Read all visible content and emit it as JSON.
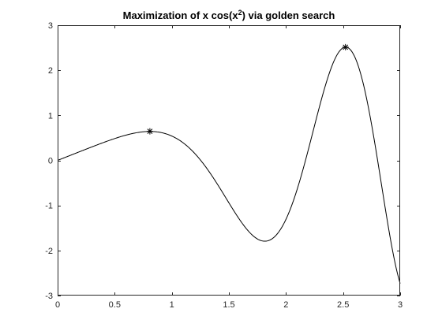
{
  "chart_data": {
    "type": "line",
    "title": {
      "main": "Maximization of x cos(x",
      "sup": "2",
      "tail": ") via golden search"
    },
    "xlim": [
      0,
      3
    ],
    "ylim": [
      -3,
      3
    ],
    "x_ticks": [
      "0",
      "0.5",
      "1",
      "1.5",
      "2",
      "2.5",
      "3"
    ],
    "y_ticks": [
      "-3",
      "-2",
      "-1",
      "0",
      "1",
      "2",
      "3"
    ],
    "grid": false,
    "series": [
      {
        "function": "x*cos(x^2)",
        "x_range": [
          0,
          3
        ],
        "color": "#000000"
      }
    ],
    "markers": [
      {
        "x": 0.808,
        "y": 0.645,
        "symbol": "*"
      },
      {
        "x": 2.521,
        "y": 2.513,
        "symbol": "*"
      }
    ]
  }
}
